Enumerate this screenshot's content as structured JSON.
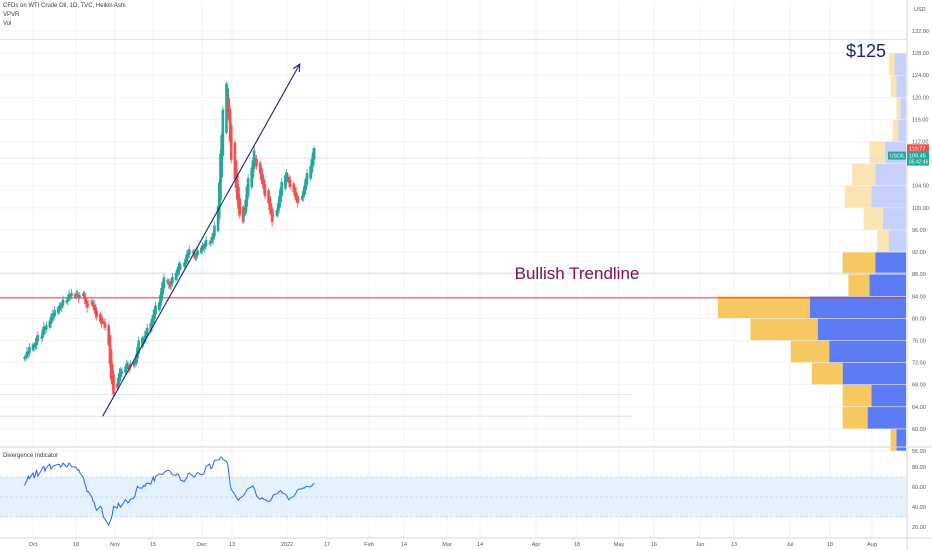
{
  "header": {
    "symbol_line": "CFDs on WTI Crude Oil, 1D, TVC, Heikin Ashi",
    "indicator_1": "VPVR",
    "indicator_2": "Vol"
  },
  "colors": {
    "up": "#26a69a",
    "down": "#ef5350",
    "trendline": "#1a237e",
    "support_line": "#e53935",
    "rsi_line": "#2962ff",
    "rsi_band": "#e3f2fd",
    "vp_up": "#5b7cf5",
    "vp_down": "#f7c85f",
    "vp_up_light": "#c5d1fb",
    "vp_down_light": "#fbe4b3",
    "ann_125": "#1a237e",
    "ann_trend": "#7b1150",
    "price_tag": "#26a69a",
    "price_tag_red": "#ef5350"
  },
  "chart_data": {
    "type": "candlestick",
    "currency": "USD",
    "ylim": [
      56,
      134
    ],
    "y_ticks": [
      "132.00",
      "128.00",
      "124.00",
      "120.00",
      "116.00",
      "112.00",
      "108.00",
      "104.00",
      "100.00",
      "96.00",
      "92.00",
      "88.00",
      "84.00",
      "80.00",
      "76.00",
      "72.00",
      "68.00",
      "64.00",
      "60.00",
      "56.00"
    ],
    "x_tick_labels": [
      "Oct",
      "18",
      "Nov",
      "15",
      "Dec",
      "13",
      "2022",
      "17",
      "Feb",
      "14",
      "Mar",
      "14",
      "Apr",
      "18",
      "May",
      "16",
      "Jun",
      "13",
      "Jul",
      "18",
      "Aug"
    ],
    "last_price_label": "110.77",
    "symbol_tag": "USOIL",
    "price_label_2": "109.45",
    "countdown_label": "05:42:46",
    "annotations": {
      "target_label": "$125",
      "trendline_label": "Bullish Trendline"
    },
    "trendline": {
      "from": [
        "2021-12-01",
        62.3
      ],
      "to": [
        "2022-05-14",
        126
      ]
    },
    "horizontal_lines": [
      {
        "role": "support",
        "value": 83.7
      },
      {
        "role": "level",
        "value": 130.5
      },
      {
        "role": "level",
        "value": 109.0
      },
      {
        "role": "level",
        "value": 88.2
      },
      {
        "role": "level",
        "value": 66.2
      },
      {
        "role": "level",
        "value": 62.3
      }
    ],
    "volume_profile": [
      {
        "price": 126,
        "up_w": 0.06,
        "down_w": 0.03
      },
      {
        "price": 122,
        "up_w": 0.05,
        "down_w": 0.03
      },
      {
        "price": 118,
        "up_w": 0.03,
        "down_w": 0.02
      },
      {
        "price": 114,
        "up_w": 0.04,
        "down_w": 0.03
      },
      {
        "price": 110,
        "up_w": 0.11,
        "down_w": 0.08
      },
      {
        "price": 106,
        "up_w": 0.16,
        "down_w": 0.12
      },
      {
        "price": 102,
        "up_w": 0.18,
        "down_w": 0.14
      },
      {
        "price": 98,
        "up_w": 0.12,
        "down_w": 0.1
      },
      {
        "price": 94,
        "up_w": 0.09,
        "down_w": 0.06
      },
      {
        "price": 90,
        "up_w": 0.16,
        "down_w": 0.17
      },
      {
        "price": 86,
        "up_w": 0.19,
        "down_w": 0.11
      },
      {
        "price": 82,
        "up_w": 0.5,
        "down_w": 0.48
      },
      {
        "price": 78,
        "up_w": 0.46,
        "down_w": 0.35
      },
      {
        "price": 74,
        "up_w": 0.4,
        "down_w": 0.2
      },
      {
        "price": 70,
        "up_w": 0.33,
        "down_w": 0.16
      },
      {
        "price": 66,
        "up_w": 0.18,
        "down_w": 0.15
      },
      {
        "price": 62,
        "up_w": 0.2,
        "down_w": 0.13
      },
      {
        "price": 58,
        "up_w": 0.05,
        "down_w": 0.03
      }
    ],
    "candles_close": [
      73.0,
      73.2,
      74.0,
      73.8,
      74.8,
      75.3,
      74.9,
      75.6,
      76.4,
      77.0,
      76.6,
      77.8,
      78.5,
      78.0,
      78.8,
      79.6,
      80.3,
      80.9,
      80.5,
      81.5,
      82.0,
      82.3,
      82.1,
      82.8,
      83.4,
      83.2,
      83.9,
      84.4,
      84.2,
      84.6,
      83.9,
      84.5,
      84.2,
      83.6,
      84.1,
      84.6,
      83.3,
      82.6,
      81.9,
      82.5,
      83.2,
      82.1,
      81.6,
      80.8,
      80.2,
      79.5,
      78.9,
      79.5,
      79.0,
      78.3,
      75.2,
      71.8,
      69.0,
      68.1,
      66.3,
      67.5,
      69.3,
      70.2,
      70.7,
      70.4,
      71.3,
      71.9,
      71.5,
      70.9,
      71.7,
      72.3,
      71.8,
      73.5,
      74.8,
      76.0,
      76.5,
      75.9,
      76.9,
      77.5,
      78.3,
      79.1,
      79.9,
      80.6,
      81.6,
      82.3,
      82.9,
      84.2,
      85.5,
      86.6,
      87.4,
      86.9,
      86.1,
      85.6,
      86.7,
      87.5,
      88.2,
      88.8,
      89.3,
      89.9,
      89.4,
      90.1,
      90.8,
      91.6,
      92.0,
      92.5,
      92.1,
      91.4,
      90.8,
      91.6,
      92.3,
      92.8,
      93.2,
      92.6,
      93.5,
      94.2,
      93.6,
      94.1,
      94.7,
      95.4,
      96.8,
      100.3,
      104.5,
      109.8,
      113.2,
      117.8,
      122.5,
      121.6,
      116.0,
      112.0,
      108.7,
      105.2,
      103.6,
      101.5,
      99.8,
      98.6,
      97.4,
      99.2,
      101.5,
      103.8,
      105.4,
      107.2,
      108.6,
      110.4,
      109.0,
      107.5,
      106.2,
      105.1,
      104.3,
      103.4,
      102.1,
      100.9,
      99.6,
      98.8,
      97.4,
      98.5,
      99.6,
      100.8,
      102.1,
      103.4,
      104.7,
      105.9,
      106.4,
      105.6,
      104.5,
      103.8,
      102.9,
      102.1,
      101.5,
      100.9,
      101.4,
      102.2,
      103.1,
      104.0,
      105.2,
      106.3,
      107.5,
      108.8,
      110.0,
      110.77
    ],
    "candles_start": "2021-09-27",
    "rsi": {
      "name": "Divergence Indicator",
      "ylim": [
        14,
        92
      ],
      "y_ticks": [
        "80.00",
        "60.00",
        "40.00",
        "20.00"
      ],
      "band": [
        30,
        70
      ],
      "midline": 50,
      "values": [
        61.6,
        64.6,
        66.3,
        70.9,
        68.3,
        74.1,
        69.2,
        72.2,
        77.4,
        70.9,
        76.8,
        79.4,
        80.7,
        75.8,
        79.1,
        82.9,
        77.9,
        79.4,
        81.0,
        81.5,
        82.7,
        82.4,
        79.9,
        81.5,
        84.0,
        80.0,
        81.2,
        84.0,
        82.5,
        80.3,
        80.1,
        79.5,
        76.7,
        77.5,
        74.0,
        69.3,
        64.1,
        60.1,
        55.3,
        55.3,
        50.1,
        45.3,
        44.2,
        39.2,
        36.7,
        40.7,
        39.5,
        33.1,
        29.1,
        27.8,
        21.9,
        25.3,
        28.1,
        32.7,
        40.6,
        38.8,
        43.7,
        41.5,
        39.7,
        41.8,
        47.3,
        46.0,
        44.0,
        45.4,
        47.7,
        48.9,
        51.6,
        57.0,
        60.7,
        59.1,
        58.9,
        61.5,
        60.6,
        62.9,
        63.9,
        63.0,
        66.5,
        70.0,
        65.9,
        70.5,
        73.2,
        72.9,
        72.6,
        72.6,
        74.6,
        76.8,
        76.4,
        75.9,
        74.2,
        72.1,
        71.6,
        73.2,
        72.6,
        69.6,
        66.8,
        65.5,
        67.8,
        68.9,
        73.1,
        74.1,
        71.0,
        69.7,
        71.1,
        73.1,
        74.5,
        72.3,
        72.8,
        72.9,
        76.2,
        80.3,
        83.0,
        78.5,
        79.0,
        83.1,
        86.8,
        87.0,
        87.2,
        89.8,
        89.7,
        87.7,
        85.4,
        83.0,
        73.5,
        62.8,
        57.4,
        52.5,
        49.9,
        48.5,
        46.7,
        48.7,
        51.2,
        52.8,
        54.8,
        57.3,
        58.5,
        60.2,
        61.2,
        58.6,
        55.6,
        51.3,
        47.8,
        48.5,
        49.1,
        47.7,
        47.6,
        45.4,
        45.8,
        47.2,
        49.1,
        52.1,
        53.2,
        54.5,
        55.6,
        56.4,
        54.2,
        53.0,
        51.5,
        48.7,
        47.2,
        48.9,
        50.6,
        52.5,
        54.4,
        57.0,
        57.8,
        58.2,
        59.1,
        59.0,
        60.7,
        60.5,
        60.1,
        61.3,
        62.5,
        64.0
      ]
    }
  }
}
